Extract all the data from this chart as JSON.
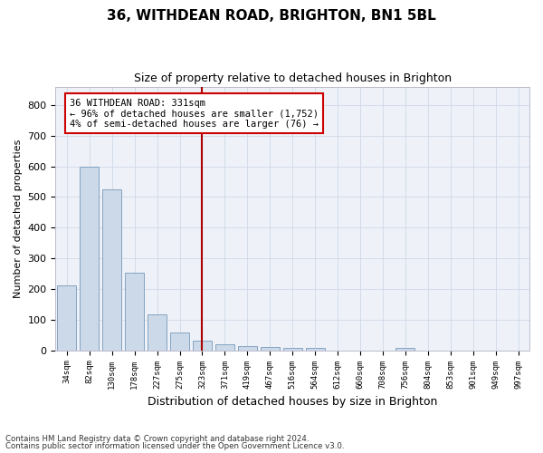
{
  "title1": "36, WITHDEAN ROAD, BRIGHTON, BN1 5BL",
  "title2": "Size of property relative to detached houses in Brighton",
  "xlabel": "Distribution of detached houses by size in Brighton",
  "ylabel": "Number of detached properties",
  "bar_color": "#ccd9e8",
  "bar_edge_color": "#7799bb",
  "categories": [
    "34sqm",
    "82sqm",
    "130sqm",
    "178sqm",
    "227sqm",
    "275sqm",
    "323sqm",
    "371sqm",
    "419sqm",
    "467sqm",
    "516sqm",
    "564sqm",
    "612sqm",
    "660sqm",
    "708sqm",
    "756sqm",
    "804sqm",
    "853sqm",
    "901sqm",
    "949sqm",
    "997sqm"
  ],
  "values": [
    213,
    598,
    525,
    253,
    117,
    57,
    33,
    19,
    13,
    10,
    7,
    8,
    0,
    0,
    0,
    8,
    0,
    0,
    0,
    0,
    0
  ],
  "vline_x": 6.0,
  "vline_color": "#aa0000",
  "annotation_title": "36 WITHDEAN ROAD: 331sqm",
  "annotation_line1": "← 96% of detached houses are smaller (1,752)",
  "annotation_line2": "4% of semi-detached houses are larger (76) →",
  "annotation_box_color": "#cc0000",
  "ylim": [
    0,
    860
  ],
  "yticks": [
    0,
    100,
    200,
    300,
    400,
    500,
    600,
    700,
    800
  ],
  "footnote1": "Contains HM Land Registry data © Crown copyright and database right 2024.",
  "footnote2": "Contains public sector information licensed under the Open Government Licence v3.0.",
  "background_color": "#eef2f8",
  "grid_color": "#d0d8e8"
}
